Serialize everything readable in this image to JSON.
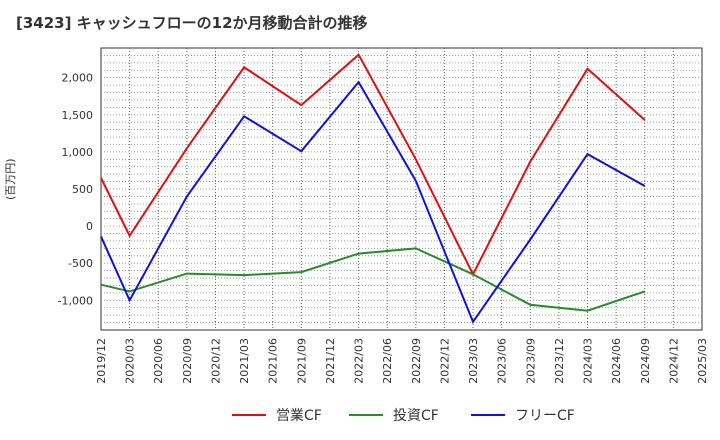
{
  "chart_data": {
    "type": "line",
    "title": "[3423]  キャッシュフローの12か月移動合計の推移",
    "ylabel": "(百万円)",
    "xlabel": "",
    "ylim": [
      -1400,
      2400
    ],
    "yticks": [
      2000,
      1500,
      1000,
      500,
      0,
      -500,
      -1000
    ],
    "ytick_labels": [
      "2,000",
      "1,500",
      "1,000",
      "500",
      "0",
      "-500",
      "-1,000"
    ],
    "x": [
      "2019/12",
      "2020/03",
      "2020/06",
      "2020/09",
      "2020/12",
      "2021/03",
      "2021/06",
      "2021/09",
      "2021/12",
      "2022/03",
      "2022/06",
      "2022/09",
      "2022/12",
      "2023/03",
      "2023/06",
      "2023/09",
      "2023/12",
      "2024/03",
      "2024/06",
      "2024/09",
      "2024/12",
      "2025/03"
    ],
    "grid": true,
    "legend_position": "bottom",
    "series": [
      {
        "name": "営業CF",
        "color": "#dd1111",
        "values": [
          650,
          -130,
          null,
          1050,
          null,
          2140,
          null,
          1630,
          null,
          2310,
          null,
          900,
          null,
          -650,
          null,
          870,
          null,
          2120,
          null,
          1430,
          null,
          null
        ]
      },
      {
        "name": "投資CF",
        "color": "#2a8a2a",
        "values": [
          -790,
          -880,
          null,
          -640,
          null,
          -660,
          null,
          -620,
          null,
          -370,
          null,
          -300,
          null,
          -650,
          null,
          -1060,
          null,
          -1140,
          null,
          -880,
          null,
          null
        ]
      },
      {
        "name": "フリーCF",
        "color": "#1111dd",
        "values": [
          -140,
          -1000,
          null,
          400,
          null,
          1480,
          null,
          1010,
          null,
          1940,
          null,
          610,
          null,
          -1290,
          null,
          -180,
          null,
          970,
          null,
          540,
          null,
          null
        ]
      }
    ]
  }
}
